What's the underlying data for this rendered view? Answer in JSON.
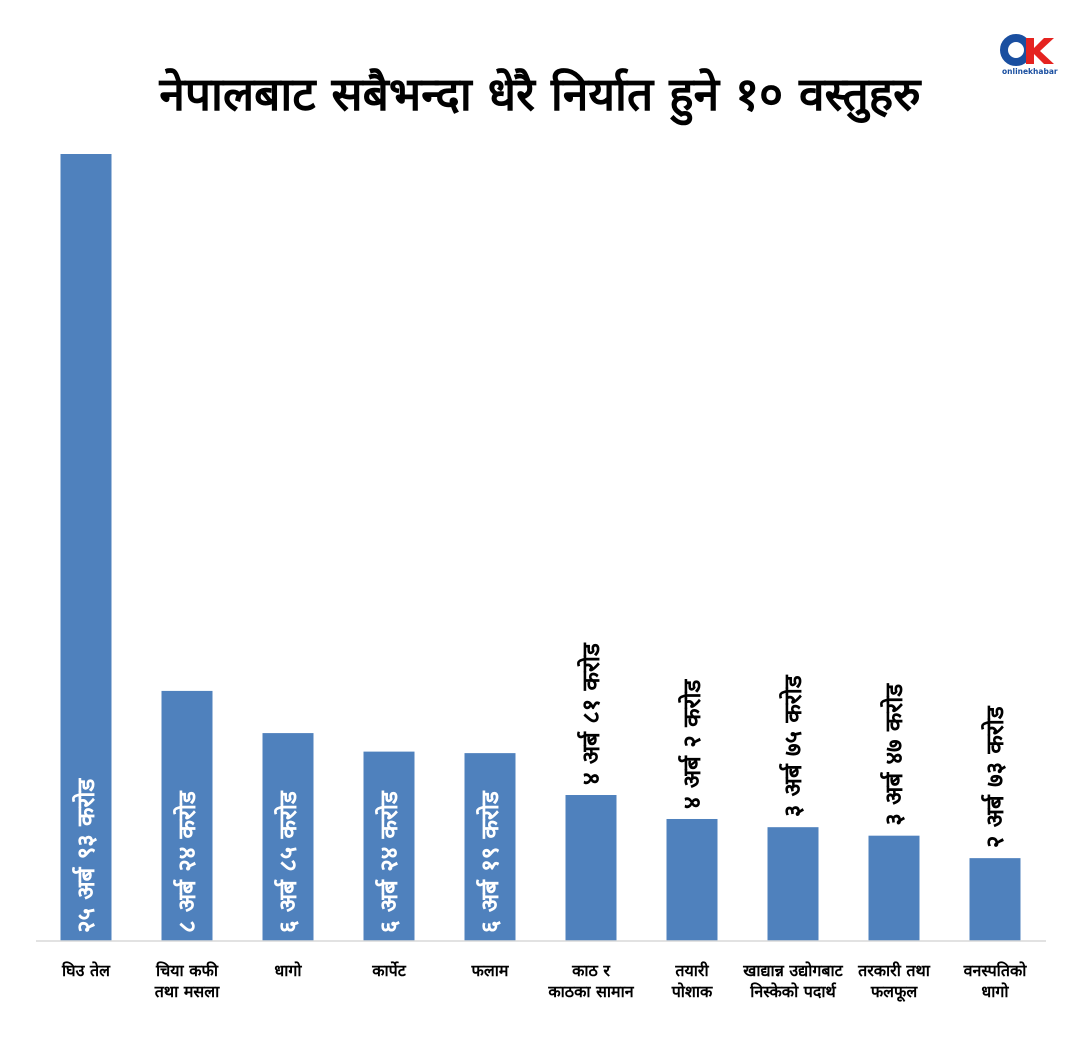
{
  "title": "नेपालबाट सबैभन्दा धेरै निर्यात हुने १० वस्तुहरु",
  "logo": {
    "icon": "onlinekhabar-logo",
    "text": "onlinekhabar",
    "color_o": "#1a4fa0",
    "color_k": "#e52320"
  },
  "chart_data": {
    "type": "bar",
    "title": "नेपालबाट सबैभन्दा धेरै निर्यात हुने १० वस्तुहरु",
    "unit": "करोड",
    "bar_color": "#4f81bd",
    "grid": false,
    "categories": [
      [
        "घिउ तेल"
      ],
      [
        "चिया कफी",
        "तथा मसला"
      ],
      [
        "धागो"
      ],
      [
        "कार्पेट"
      ],
      [
        "फलाम"
      ],
      [
        "काठ र",
        "काठका सामान"
      ],
      [
        "तयारी",
        "पोशाक"
      ],
      [
        "खाद्यान्न उद्योगबाट",
        "निस्केको पदार्थ"
      ],
      [
        "तरकारी तथा",
        "फलफूल"
      ],
      [
        "वनस्पतिको",
        "धागो"
      ]
    ],
    "values": [
      2593,
      824,
      685,
      624,
      619,
      481,
      402,
      375,
      347,
      273
    ],
    "labels": [
      "२५ अर्ब ९३ करोड",
      "८ अर्ब २४ करोड",
      "६ अर्ब ८५ करोड",
      "६ अर्ब २४ करोड",
      "६ अर्ब १९ करोड",
      "४ अर्ब ८१ करोड",
      "४ अर्ब २ करोड",
      "३ अर्ब ७५ करोड",
      "३ अर्ब ४७ करोड",
      "२ अर्ब ७३ करोड"
    ],
    "label_inside": [
      true,
      true,
      true,
      true,
      true,
      false,
      false,
      false,
      false,
      false
    ],
    "ylim": [
      0,
      2593
    ]
  }
}
